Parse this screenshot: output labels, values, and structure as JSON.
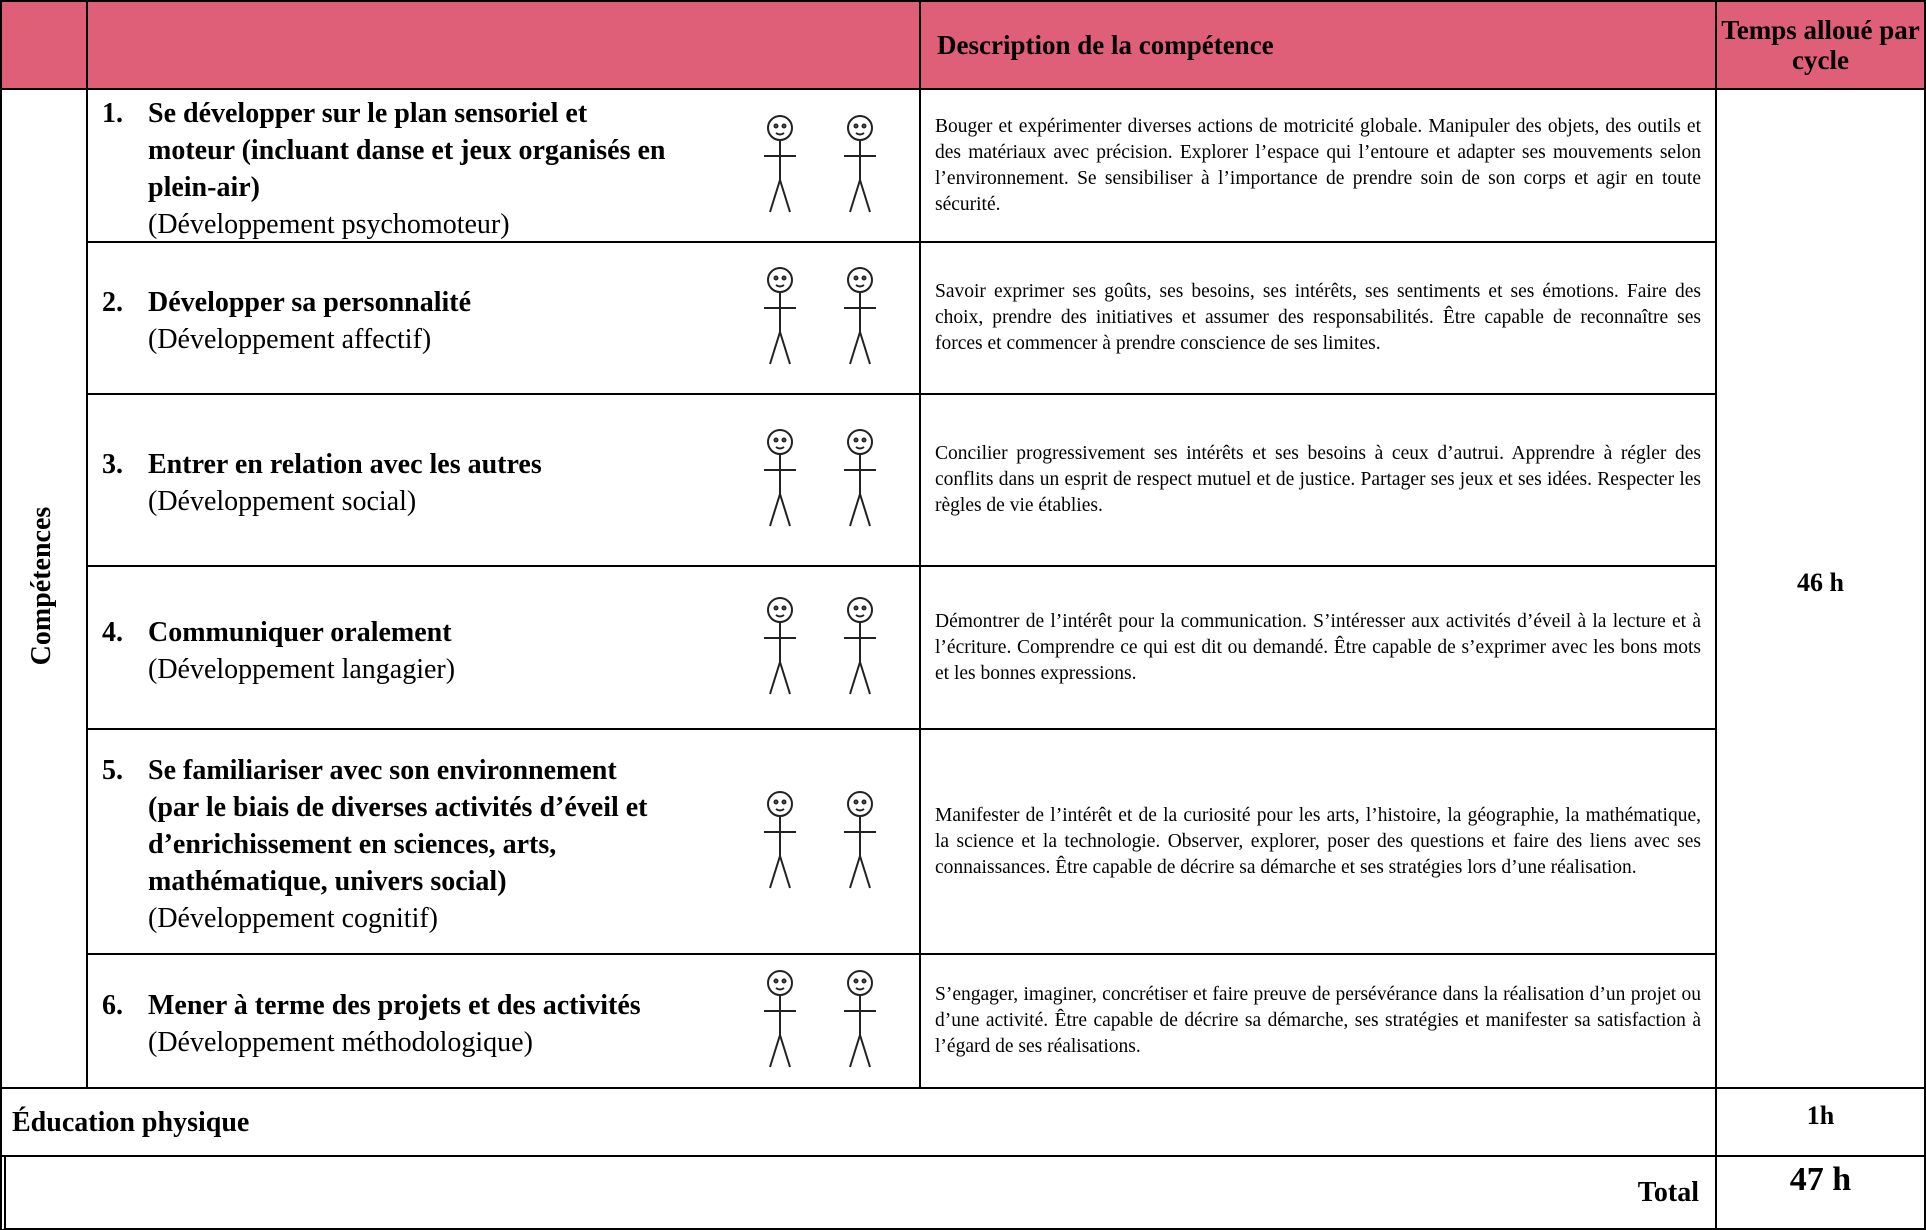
{
  "header": {
    "description": "Description de la compétence",
    "time": "Temps alloué par cycle"
  },
  "side_label": "Compétences",
  "competences_time": "46 h",
  "rows": [
    {
      "number": "1.",
      "title": "Se développer sur le plan sensoriel et moteur (incluant danse et jeux organisés en plein-air)",
      "subtitle": "(Développement psychomoteur)",
      "description": "Bouger et expérimenter diverses actions de motricité globale. Manipuler des objets, des outils et des matériaux avec précision. Explorer l’espace qui l’entoure et adapter ses mouvements selon l’environnement. Se sensibiliser à l’importance de prendre soin de son corps et agir en toute sécurité."
    },
    {
      "number": "2.",
      "title": "Développer sa personnalité",
      "subtitle": "(Développement affectif)",
      "description": "Savoir exprimer ses goûts, ses besoins, ses intérêts, ses sentiments et ses émotions. Faire des choix, prendre des initiatives et assumer des responsabilités. Être capable de reconnaître ses forces et commencer à prendre conscience de ses limites."
    },
    {
      "number": "3.",
      "title": "Entrer en relation avec les autres",
      "subtitle": "(Développement social)",
      "description": "Concilier progressivement ses intérêts et ses besoins à ceux d’autrui. Apprendre à régler des conflits dans un esprit de respect mutuel et de justice. Partager ses jeux et ses idées. Respecter les règles de vie établies."
    },
    {
      "number": "4.",
      "title": "Communiquer oralement",
      "subtitle": "(Développement langagier)",
      "description": "Démontrer de l’intérêt pour la communication. S’intéresser aux activités d’éveil à la lecture et à l’écriture. Comprendre ce qui est dit ou demandé. Être capable de s’exprimer avec les bons mots et les bonnes expressions."
    },
    {
      "number": "5.",
      "title": "Se familiariser avec son environnement (par le biais de diverses activités d’éveil et d’enrichissement en sciences, arts, mathématique, univers social)",
      "subtitle": "(Développement cognitif)",
      "description": "Manifester de l’intérêt et de la curiosité pour les arts, l’histoire, la géographie, la mathématique, la science et la technologie. Observer, explorer, poser des questions et faire des liens avec ses connaissances. Être capable de décrire sa démarche et ses stratégies lors d’une réalisation."
    },
    {
      "number": "6.",
      "title": "Mener à terme des projets et des activités",
      "subtitle": "(Développement méthodologique)",
      "description": "S’engager, imaginer, concrétiser et faire preuve de persévérance dans la réalisation d’un projet ou d’une activité. Être capable de décrire sa démarche, ses stratégies et manifester sa satisfaction à l’égard de ses réalisations."
    }
  ],
  "education": {
    "label": "Éducation physique",
    "time": "1h"
  },
  "total": {
    "label": "Total",
    "time": "47 h"
  }
}
